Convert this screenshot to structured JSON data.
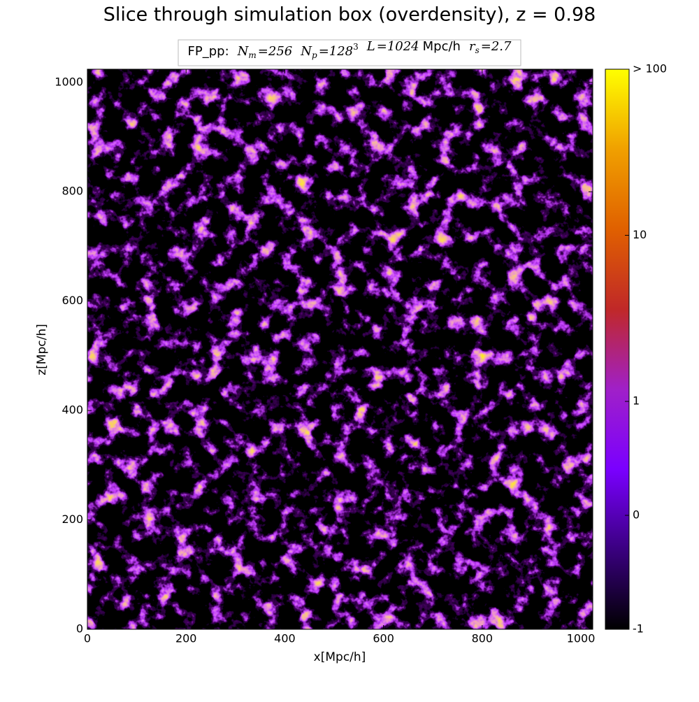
{
  "chart_data": {
    "type": "heatmap",
    "title": "Slice through simulation box (overdensity), z = 0.98",
    "subtitle": {
      "label": "FP_pp:",
      "params": [
        {
          "symbol": "N",
          "sub": "m",
          "value": "=256"
        },
        {
          "symbol": "N",
          "sub": "p",
          "value": "=128",
          "sup": "3"
        },
        {
          "symbol": "L",
          "value": "=1024",
          "unit": "Mpc/h"
        },
        {
          "symbol": "r",
          "sub": "s",
          "value": "=2.7"
        }
      ]
    },
    "xlabel": "x[Mpc/h]",
    "ylabel": "z[Mpc/h]",
    "xlim": [
      0,
      1024
    ],
    "ylim": [
      0,
      1024
    ],
    "xticks": [
      0,
      200,
      400,
      600,
      800,
      1000
    ],
    "yticks": [
      0,
      200,
      400,
      600,
      800,
      1000
    ],
    "colorbar": {
      "scale": "symlog",
      "clim": [
        -1,
        100
      ],
      "ticks": [
        -1,
        0,
        1,
        10,
        {
          "value": 100,
          "label": "> 100"
        }
      ],
      "colormap": [
        "#000000",
        "#3a0080",
        "#7a00ff",
        "#a020c8",
        "#c02828",
        "#e06000",
        "#f0a000",
        "#ffff00"
      ]
    }
  }
}
